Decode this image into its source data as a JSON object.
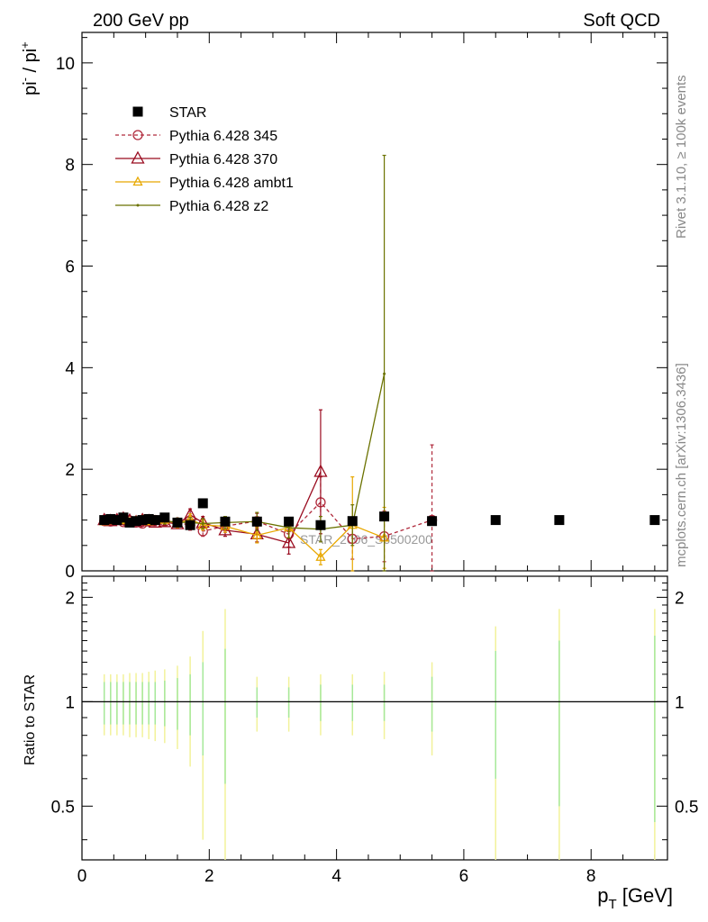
{
  "header": {
    "left": "200 GeV pp",
    "right": "Soft QCD"
  },
  "side_text": {
    "rivet": "Rivet 3.1.10, ≥ 100k events",
    "source": "mcplots.cern.ch [arXiv:1306.3436]"
  },
  "watermark": "STAR_2006_S6500200",
  "top_panel": {
    "ylabel": "pi- / pi+",
    "ylabel_main": "pi",
    "ylabel_sup1": "-",
    "ylabel_sep": " / pi",
    "ylabel_sup2": "+",
    "yticks": [
      "0",
      "2",
      "4",
      "6",
      "8",
      "10"
    ]
  },
  "ratio_panel": {
    "ylabel": "Ratio to STAR",
    "yticks_left": [
      "0.5",
      "1",
      "2"
    ],
    "yticks_right": [
      "0.5",
      "1",
      "2"
    ]
  },
  "x_axis": {
    "label": "p_T [GeV]",
    "label_main": "p",
    "label_sub": "T",
    "label_unit": " [GeV]",
    "ticks": [
      "0",
      "2",
      "4",
      "6",
      "8"
    ]
  },
  "legend": [
    {
      "label": "STAR"
    },
    {
      "label": "Pythia 6.428 345"
    },
    {
      "label": "Pythia 6.428 370"
    },
    {
      "label": "Pythia 6.428 ambt1"
    },
    {
      "label": "Pythia 6.428 z2"
    }
  ],
  "chart_data": {
    "type": "scatter",
    "title": "",
    "xlabel": "p_T [GeV]",
    "ylabel": "pi- / pi+",
    "xlim": [
      0,
      9.2
    ],
    "ylim": [
      0,
      10.6
    ],
    "ratio_ylim": [
      0.35,
      2.3
    ],
    "ratio_ylabel": "Ratio to STAR",
    "grid": false,
    "legend_position": "top-left",
    "colors": {
      "star": "#000000",
      "p345": "#b02a3c",
      "p370": "#990a1e",
      "ambt1": "#e8a800",
      "z2": "#6b7200",
      "band_inner": "#a6e89a",
      "band_outer": "#f2f29a"
    },
    "series": [
      {
        "name": "STAR",
        "x": [
          0.35,
          0.45,
          0.55,
          0.65,
          0.75,
          0.85,
          0.95,
          1.05,
          1.15,
          1.3,
          1.5,
          1.7,
          1.9,
          2.25,
          2.75,
          3.25,
          3.75,
          4.25,
          4.75,
          5.5,
          6.5,
          7.5,
          9.0
        ],
        "y": [
          1.0,
          1.02,
          1.0,
          1.05,
          0.95,
          0.98,
          1.0,
          1.02,
          1.0,
          1.05,
          0.95,
          0.9,
          1.33,
          0.97,
          0.97,
          0.97,
          0.9,
          0.98,
          1.07,
          0.98,
          1.0,
          1.0,
          1.0
        ],
        "ratio_band_inner": [
          0.14,
          0.14,
          0.14,
          0.14,
          0.14,
          0.14,
          0.14,
          0.14,
          0.14,
          0.15,
          0.17,
          0.2,
          0.3,
          0.42,
          0.1,
          0.1,
          0.12,
          0.12,
          0.12,
          0.18,
          0.4,
          0.5,
          0.55
        ],
        "ratio_band_outer": [
          0.2,
          0.2,
          0.2,
          0.2,
          0.21,
          0.21,
          0.21,
          0.22,
          0.23,
          0.24,
          0.27,
          0.35,
          0.6,
          0.85,
          0.18,
          0.18,
          0.2,
          0.2,
          0.22,
          0.3,
          0.65,
          0.85,
          0.85
        ]
      },
      {
        "name": "Pythia 6.428 345",
        "x": [
          0.35,
          0.45,
          0.55,
          0.65,
          0.75,
          0.85,
          0.95,
          1.05,
          1.15,
          1.3,
          1.5,
          1.7,
          1.9,
          2.25,
          2.75,
          3.25,
          3.75,
          4.25,
          4.75,
          5.5
        ],
        "y": [
          0.98,
          0.97,
          1.0,
          0.96,
          0.99,
          0.95,
          0.93,
          0.97,
          1.0,
          0.97,
          0.95,
          0.9,
          0.78,
          0.88,
          0.98,
          0.72,
          1.35,
          0.63,
          0.68,
          1.0
        ],
        "err": [
          0.03,
          0.03,
          0.03,
          0.04,
          0.04,
          0.04,
          0.05,
          0.05,
          0.06,
          0.06,
          0.08,
          0.1,
          0.1,
          0.12,
          0.15,
          0.25,
          0.5,
          0.4,
          0.5,
          1.48
        ]
      },
      {
        "name": "Pythia 6.428 370",
        "x": [
          0.35,
          0.45,
          0.55,
          0.65,
          0.75,
          0.85,
          0.95,
          1.05,
          1.15,
          1.3,
          1.5,
          1.7,
          1.9,
          2.25,
          2.75,
          3.25,
          3.75
        ],
        "y": [
          1.0,
          0.98,
          1.0,
          1.03,
          0.99,
          0.96,
          1.0,
          0.98,
          0.95,
          0.96,
          0.92,
          1.1,
          0.95,
          0.8,
          0.72,
          0.55,
          1.95
        ],
        "err": [
          0.03,
          0.03,
          0.03,
          0.04,
          0.04,
          0.04,
          0.05,
          0.05,
          0.06,
          0.06,
          0.08,
          0.12,
          0.12,
          0.12,
          0.15,
          0.22,
          1.22
        ]
      },
      {
        "name": "Pythia 6.428 ambt1",
        "x": [
          0.35,
          0.45,
          0.55,
          0.65,
          0.75,
          0.85,
          0.95,
          1.05,
          1.15,
          1.3,
          1.5,
          1.7,
          1.9,
          2.25,
          2.75,
          3.25,
          3.75,
          4.25,
          4.75
        ],
        "y": [
          0.97,
          0.99,
          0.98,
          0.99,
          0.96,
          0.98,
          1.0,
          0.97,
          0.99,
          1.0,
          0.93,
          1.02,
          0.9,
          0.88,
          0.7,
          0.85,
          0.27,
          0.9,
          0.65
        ],
        "err": [
          0.03,
          0.03,
          0.03,
          0.04,
          0.04,
          0.04,
          0.05,
          0.05,
          0.06,
          0.06,
          0.08,
          0.1,
          0.1,
          0.12,
          0.15,
          0.2,
          0.15,
          0.95,
          0.6
        ]
      },
      {
        "name": "Pythia 6.428 z2",
        "x": [
          0.35,
          0.45,
          0.55,
          0.65,
          0.75,
          0.85,
          0.95,
          1.05,
          1.15,
          1.3,
          1.5,
          1.7,
          1.9,
          2.25,
          2.75,
          3.25,
          3.75,
          4.25,
          4.75
        ],
        "y": [
          1.0,
          1.01,
          0.99,
          1.0,
          0.98,
          1.0,
          0.97,
          1.0,
          0.99,
          0.98,
          0.96,
          0.95,
          0.93,
          0.95,
          0.97,
          0.85,
          0.82,
          0.9,
          3.88
        ],
        "err": [
          0.03,
          0.03,
          0.03,
          0.04,
          0.04,
          0.04,
          0.05,
          0.05,
          0.06,
          0.06,
          0.08,
          0.1,
          0.1,
          0.12,
          0.18,
          0.2,
          0.25,
          0.4,
          4.3
        ]
      }
    ]
  }
}
